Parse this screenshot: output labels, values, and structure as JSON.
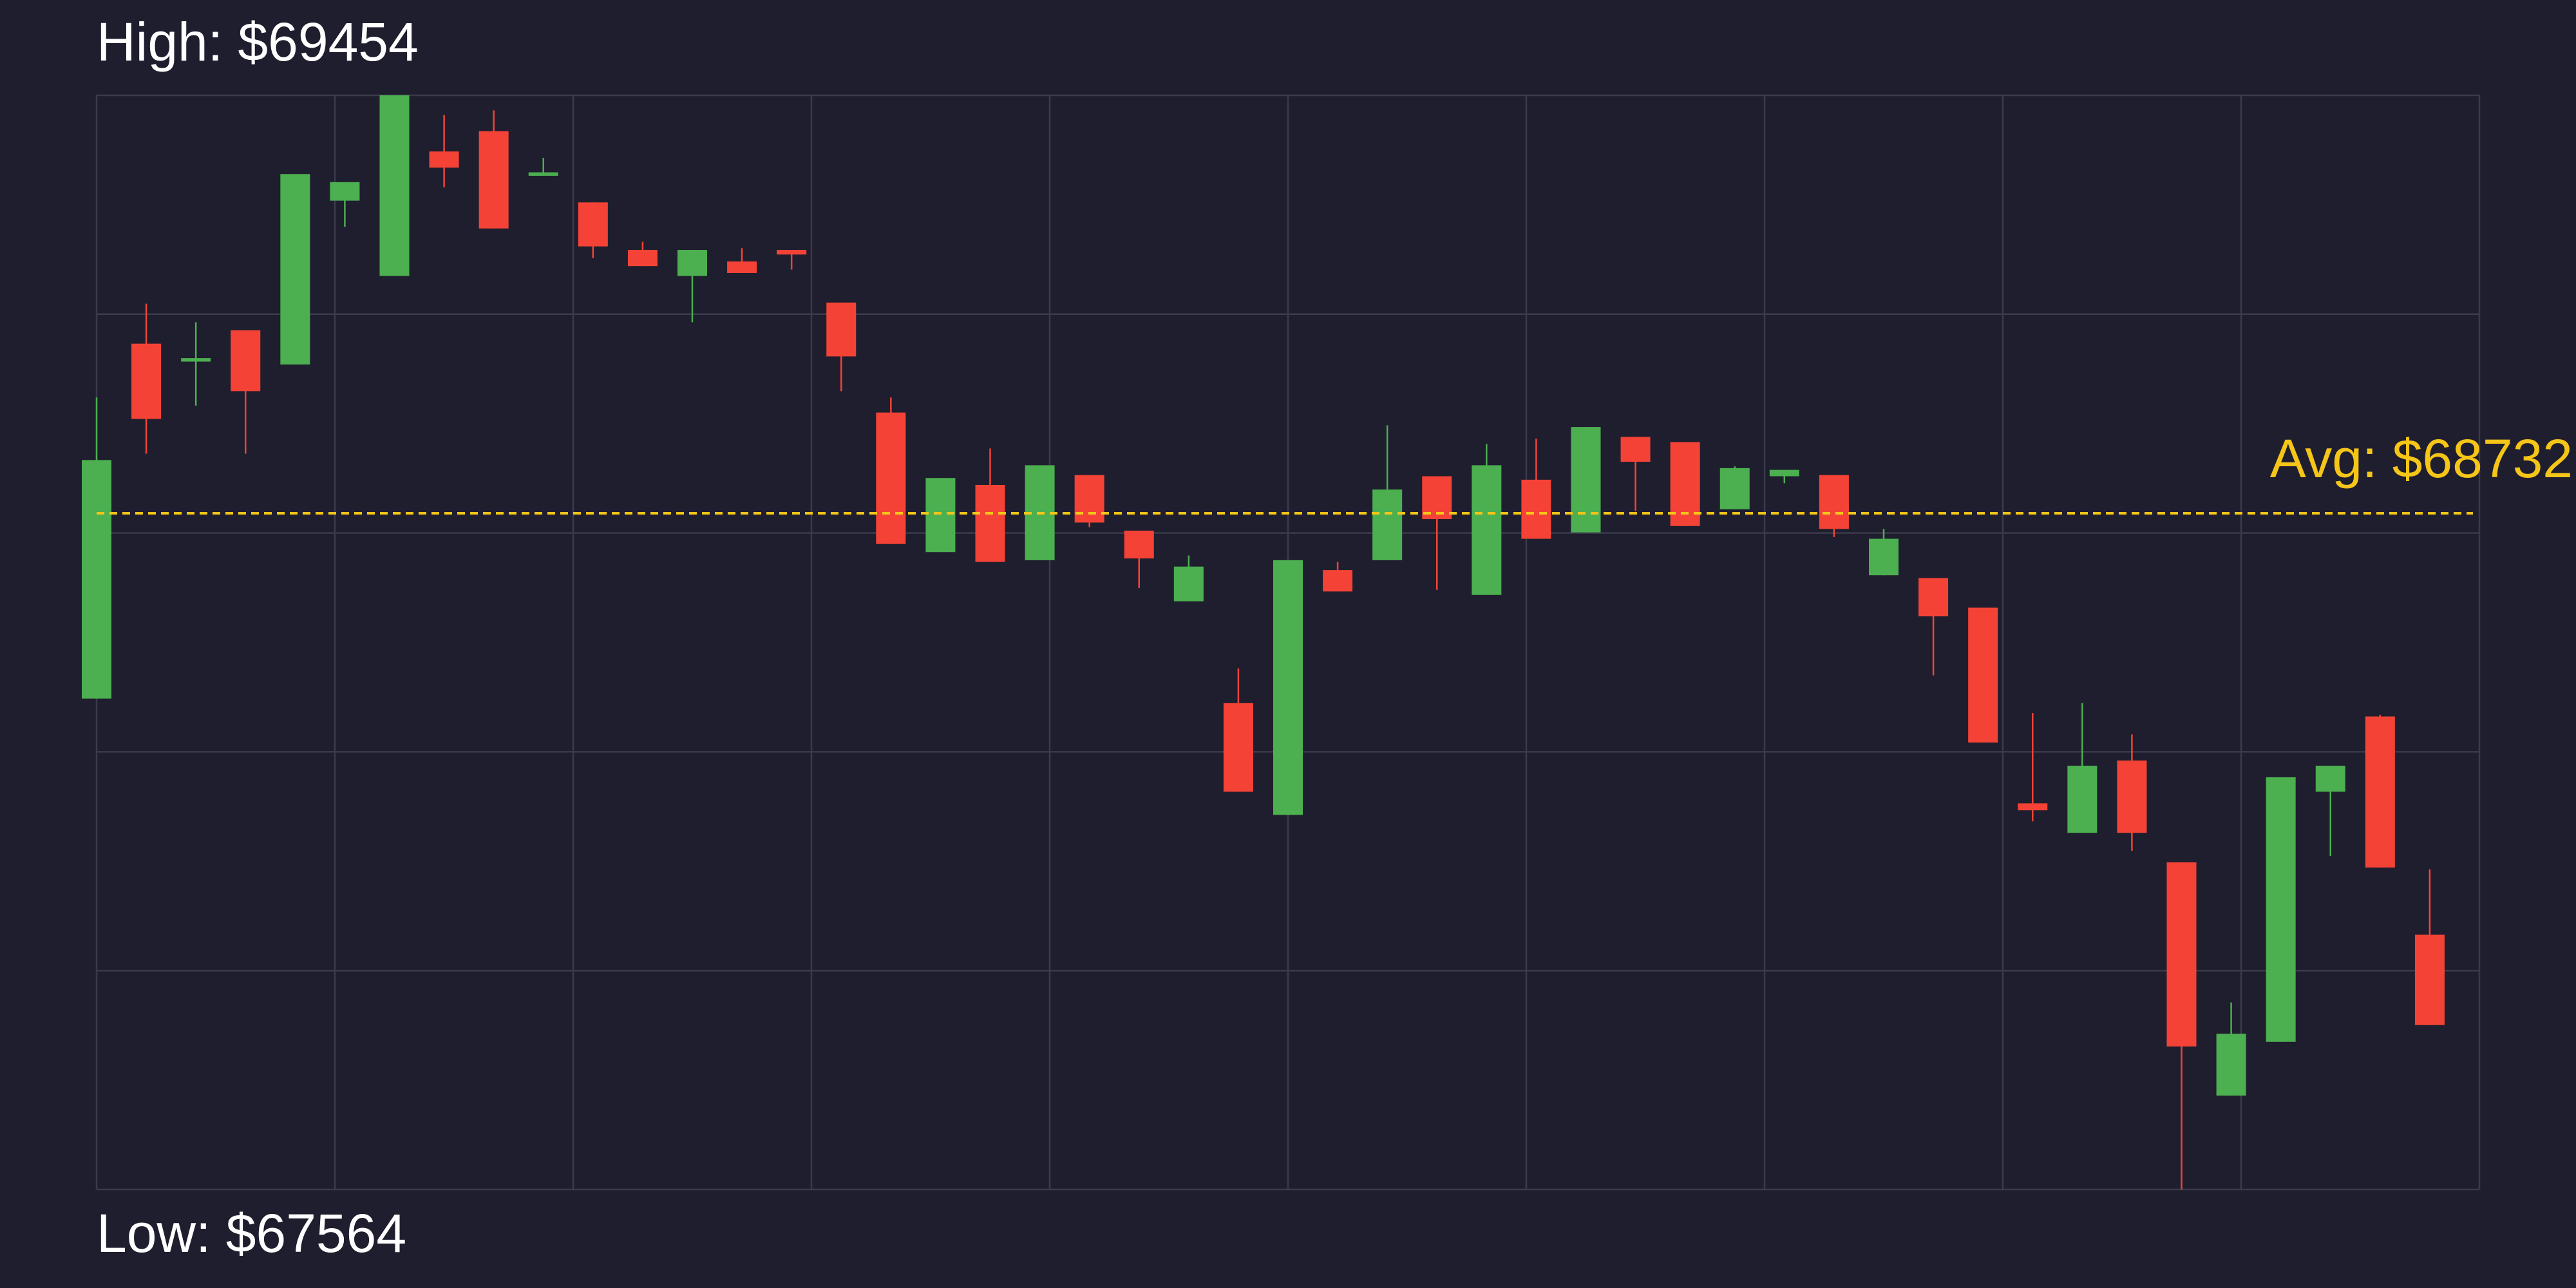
{
  "chart_data": {
    "type": "candlestick",
    "high": {
      "value": 69454,
      "label": "High: $69454"
    },
    "low": {
      "value": 67564,
      "label": "Low: $67564"
    },
    "average": {
      "value": 68732,
      "label": "Avg: $68732"
    },
    "ylim": [
      67564,
      69454
    ],
    "grid": true,
    "up_color": "#4caf50",
    "down_color": "#f44336",
    "average_color": "#f5c518",
    "open": [
      68412,
      69025,
      68994,
      69048,
      68989,
      69272,
      69142,
      69357,
      69392,
      69315,
      69269,
      69187,
      69142,
      69167,
      69187,
      69096,
      68906,
      68665,
      68781,
      68651,
      68798,
      68702,
      68580,
      68404,
      68211,
      68634,
      68651,
      68796,
      68591,
      68790,
      68699,
      68864,
      68855,
      68739,
      68796,
      68798,
      68625,
      68620,
      68569,
      68231,
      68180,
      68305,
      68129,
      67726,
      67819,
      68251,
      68381,
      68004
    ],
    "high_values": [
      68932,
      69094,
      69062,
      69048,
      69318,
      69304,
      69454,
      69420,
      69428,
      69346,
      69269,
      69201,
      69187,
      69190,
      69187,
      69096,
      68932,
      68793,
      68844,
      68815,
      68798,
      68702,
      68659,
      68464,
      68651,
      68648,
      68884,
      68796,
      68852,
      68861,
      68881,
      68864,
      68855,
      68813,
      68807,
      68798,
      68705,
      68620,
      68569,
      68387,
      68404,
      68350,
      68129,
      67887,
      68276,
      68296,
      68384,
      68117
    ],
    "low_values": [
      68412,
      68835,
      68918,
      68835,
      68989,
      69227,
      69142,
      69295,
      69224,
      69315,
      69173,
      69159,
      69062,
      69147,
      69153,
      68943,
      68679,
      68665,
      68648,
      68651,
      68708,
      68603,
      68580,
      68251,
      68211,
      68597,
      68651,
      68600,
      68591,
      68688,
      68699,
      68736,
      68710,
      68739,
      68784,
      68691,
      68625,
      68452,
      68336,
      68200,
      68180,
      68149,
      67564,
      67726,
      67819,
      68140,
      68120,
      67848
    ],
    "close": [
      68824,
      68895,
      69000,
      68943,
      69318,
      69304,
      69454,
      69329,
      69224,
      69321,
      69193,
      69159,
      69187,
      69147,
      69179,
      69003,
      68679,
      68793,
      68648,
      68815,
      68716,
      68654,
      68640,
      68251,
      68651,
      68597,
      68773,
      68722,
      68815,
      68688,
      68881,
      68821,
      68710,
      68810,
      68807,
      68705,
      68688,
      68554,
      68336,
      68219,
      68296,
      68180,
      67811,
      67833,
      68276,
      68296,
      68120,
      67848
    ]
  }
}
